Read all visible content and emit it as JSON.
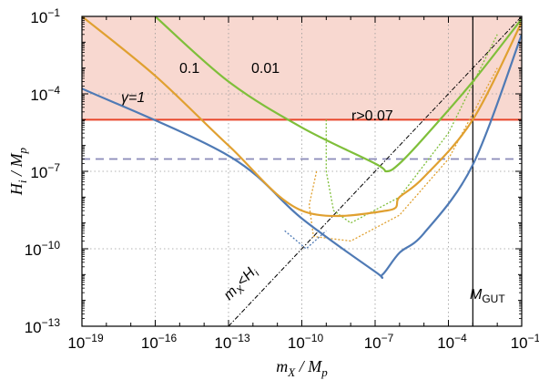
{
  "chart_data": {
    "type": "line",
    "xlabel": "m_X / M_p",
    "ylabel": "H_i / M_p",
    "x_scale": "log",
    "y_scale": "log",
    "xlim": [
      1e-19,
      0.1
    ],
    "ylim": [
      1e-13,
      0.1
    ],
    "grid": true,
    "x_tick_exponents": [
      -19,
      -16,
      -13,
      -10,
      -7,
      -4,
      -1
    ],
    "y_tick_exponents": [
      -13,
      -10,
      -7,
      -4,
      -1
    ],
    "excluded_region": {
      "y_min": 1e-05,
      "label": "r>0.07",
      "fill": "#f8d8d0",
      "line_color": "#e8452a"
    },
    "reference_lines": [
      {
        "type": "horizontal",
        "y": 3e-07,
        "style": "dashed",
        "color": "#8a8ab8"
      },
      {
        "type": "vertical",
        "x": 0.001,
        "label": "M_GUT",
        "color": "#000000"
      },
      {
        "type": "diagonal",
        "relation": "H_i = m_X",
        "label": "m_X<H_i",
        "style": "dash-dot",
        "color": "#000000"
      }
    ],
    "series": [
      {
        "name": "γ=1",
        "color": "#4f7ab5",
        "left_branch": {
          "x": [
            1e-19,
            1e-13,
            1e-10,
            1e-07,
            2e-07
          ],
          "y": [
            0.00016,
            4e-07,
            1.5e-09,
            1.3e-11,
            1e-11
          ]
        },
        "right_branch": {
          "x": [
            2e-07,
            1e-06,
            1e-05,
            0.001,
            0.1
          ],
          "y": [
            1e-11,
            7e-11,
            4e-10,
            1.8e-07,
            0.02
          ]
        },
        "minimum": {
          "x": 2e-07,
          "y": 1e-11
        }
      },
      {
        "name": "0.1",
        "color": "#e0a030",
        "left_branch": {
          "x": [
            1e-19,
            1e-16,
            1e-13,
            1e-10,
            3e-07
          ],
          "y": [
            0.1,
            0.0005,
            1e-06,
            3e-09,
            3e-09
          ]
        },
        "right_branch": {
          "x": [
            3e-07,
            1e-06,
            1e-05,
            0.001,
            0.1
          ],
          "y": [
            3e-09,
            1e-08,
            6e-08,
            1e-05,
            0.06
          ]
        },
        "minimum": {
          "x": 3e-07,
          "y": 3e-09
        }
      },
      {
        "name": "0.01",
        "color": "#7fbf3a",
        "left_branch": {
          "x": [
            1e-16,
            1e-13,
            1e-10,
            1e-07,
            3e-07
          ],
          "y": [
            0.1,
            0.0003,
            5e-06,
            2e-07,
            1e-07
          ]
        },
        "right_branch": {
          "x": [
            3e-07,
            1e-06,
            1e-05,
            0.001,
            0.1
          ],
          "y": [
            1e-07,
            2e-07,
            2e-06,
            0.0003,
            0.08
          ]
        },
        "minimum": {
          "x": 3e-07,
          "y": 1e-07
        }
      }
    ],
    "dotted_threshold_curves": [
      {
        "color": "#4f7ab5",
        "points": {
          "x": [
            2e-11,
            1.5e-10,
            1e-09
          ],
          "y": [
            5e-10,
            1e-10,
            5e-10
          ]
        }
      },
      {
        "color": "#e0a030",
        "points": {
          "x": [
            4e-10,
            2e-10,
            3e-10,
            1e-08,
            1e-06,
            0.0001,
            0.01
          ],
          "y": [
            1e-07,
            5e-09,
            3e-10,
            2e-10,
            2e-09,
            3e-07,
            0.001
          ]
        }
      },
      {
        "color": "#7fbf3a",
        "points": {
          "x": [
            1e-09,
            1e-09,
            2e-09,
            1e-08,
            1e-06,
            0.0001,
            0.01
          ],
          "y": [
            1e-05,
            1e-07,
            3e-09,
            1e-09,
            1e-08,
            3e-06,
            0.02
          ]
        }
      }
    ],
    "annotations": {
      "gamma_prefix": "γ=",
      "gamma_values": [
        "1",
        "0.1",
        "0.01"
      ],
      "r_bound": "r>0.07",
      "diag": "m_X<H_i",
      "gut": "M_GUT"
    }
  }
}
